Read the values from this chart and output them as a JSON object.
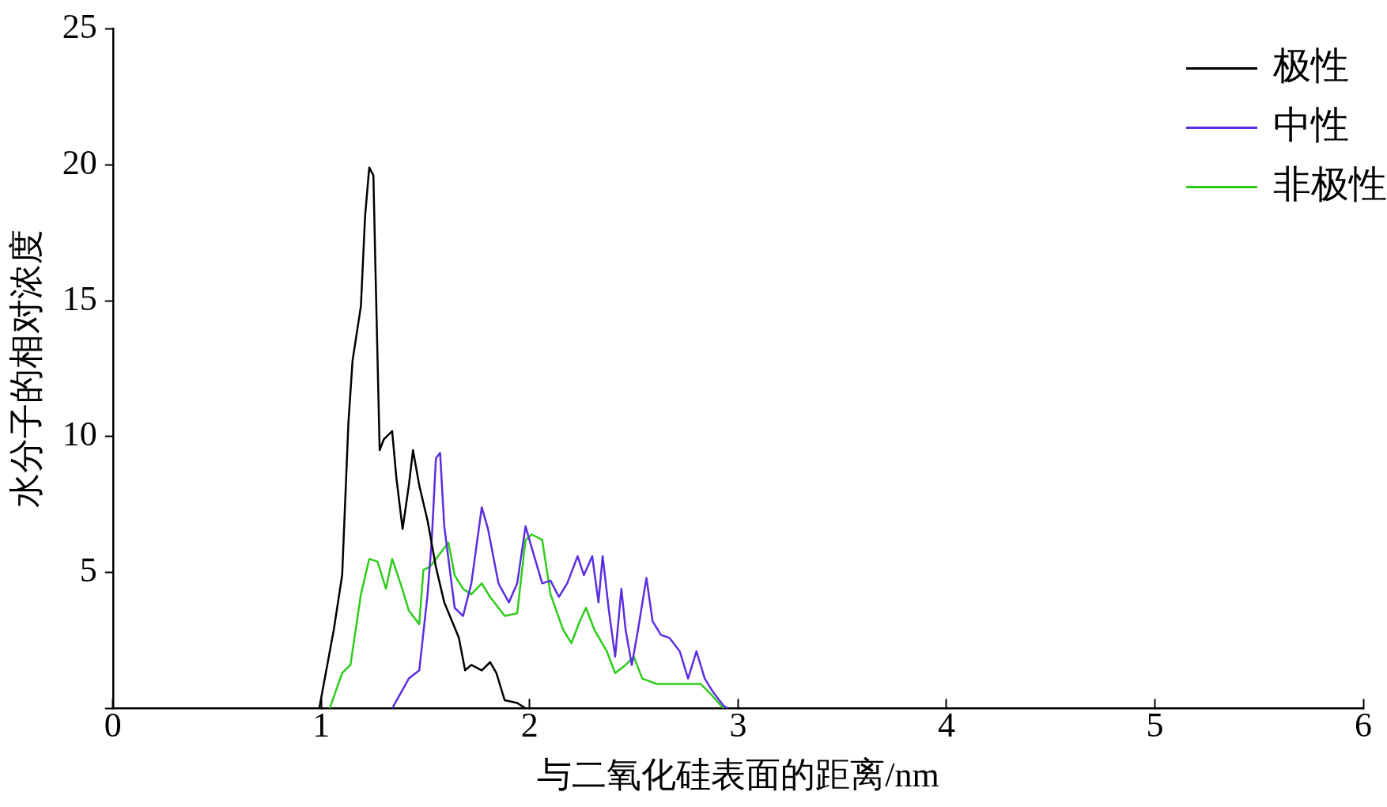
{
  "chart_data": {
    "type": "line",
    "xlabel": "与二氧化硅表面的距离/nm",
    "ylabel": "水分子的相对浓度",
    "xlim": [
      0,
      6
    ],
    "xticks": [
      0,
      1,
      2,
      3,
      4,
      5,
      6
    ],
    "ylim": [
      0,
      25
    ],
    "yticks": [
      {
        "value": 0,
        "label": null
      },
      5,
      10,
      15,
      20,
      25
    ],
    "grid": false,
    "legend": "top right",
    "marker": "none",
    "line_style": "solid",
    "series": [
      {
        "name": "极性",
        "color": "#000000",
        "x": [
          0.99,
          1.06,
          1.1,
          1.13,
          1.15,
          1.19,
          1.21,
          1.23,
          1.25,
          1.26,
          1.28,
          1.3,
          1.34,
          1.36,
          1.39,
          1.42,
          1.44,
          1.47,
          1.51,
          1.55,
          1.59,
          1.66,
          1.69,
          1.72,
          1.77,
          1.81,
          1.84,
          1.88,
          1.94,
          1.98
        ],
        "values": [
          0,
          2.9,
          4.9,
          10.5,
          12.8,
          14.8,
          18.1,
          19.9,
          19.6,
          16.1,
          9.5,
          9.9,
          10.2,
          8.5,
          6.6,
          8.2,
          9.5,
          8.2,
          6.9,
          5.2,
          3.9,
          2.6,
          1.4,
          1.6,
          1.4,
          1.7,
          1.3,
          0.3,
          0.2,
          0
        ]
      },
      {
        "name": "中性",
        "color": "#5b2ee0",
        "x": [
          1.34,
          1.42,
          1.47,
          1.51,
          1.53,
          1.55,
          1.57,
          1.59,
          1.64,
          1.68,
          1.72,
          1.77,
          1.8,
          1.85,
          1.9,
          1.94,
          1.98,
          2.01,
          2.06,
          2.1,
          2.14,
          2.18,
          2.23,
          2.26,
          2.3,
          2.33,
          2.35,
          2.38,
          2.41,
          2.44,
          2.46,
          2.49,
          2.52,
          2.56,
          2.59,
          2.63,
          2.67,
          2.72,
          2.76,
          2.8,
          2.84,
          2.88,
          2.93,
          2.95
        ],
        "values": [
          0,
          1.1,
          1.4,
          4.2,
          6.2,
          9.2,
          9.4,
          6.7,
          3.7,
          3.4,
          4.6,
          7.4,
          6.6,
          4.6,
          3.9,
          4.6,
          6.7,
          5.9,
          4.6,
          4.7,
          4.1,
          4.6,
          5.6,
          4.9,
          5.6,
          3.9,
          5.6,
          3.6,
          1.9,
          4.4,
          2.9,
          1.6,
          2.9,
          4.8,
          3.2,
          2.7,
          2.6,
          2.1,
          1.1,
          2.1,
          1.1,
          0.6,
          0.1,
          0
        ]
      },
      {
        "name": "非极性",
        "color": "#2ecc1a",
        "x": [
          1.04,
          1.1,
          1.14,
          1.19,
          1.23,
          1.27,
          1.31,
          1.34,
          1.38,
          1.42,
          1.47,
          1.49,
          1.52,
          1.56,
          1.61,
          1.64,
          1.68,
          1.72,
          1.77,
          1.81,
          1.88,
          1.94,
          1.98,
          2.01,
          2.06,
          2.1,
          2.16,
          2.2,
          2.24,
          2.27,
          2.31,
          2.37,
          2.41,
          2.46,
          2.5,
          2.54,
          2.61,
          2.72,
          2.82,
          2.86,
          2.93
        ],
        "values": [
          0,
          1.3,
          1.6,
          4.2,
          5.5,
          5.4,
          4.4,
          5.5,
          4.6,
          3.6,
          3.1,
          5.1,
          5.2,
          5.6,
          6.1,
          4.9,
          4.4,
          4.2,
          4.6,
          4.1,
          3.4,
          3.5,
          6.2,
          6.4,
          6.2,
          4.2,
          2.9,
          2.4,
          3.2,
          3.7,
          2.9,
          2.1,
          1.3,
          1.6,
          1.9,
          1.1,
          0.9,
          0.9,
          0.9,
          0.6,
          0
        ]
      }
    ]
  }
}
